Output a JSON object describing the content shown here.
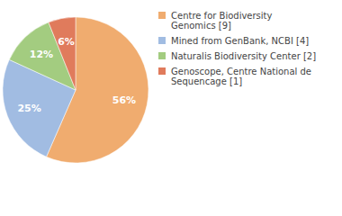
{
  "chart_data": {
    "type": "pie",
    "categories": [
      "Centre for Biodiversity\nGenomics [9]",
      "Mined from GenBank, NCBI [4]",
      "Naturalis Biodiversity Center [2]",
      "Genoscope, Centre National de\nSequencage [1]"
    ],
    "values": [
      56,
      25,
      12,
      6
    ],
    "value_labels": [
      "56%",
      "25%",
      "12%",
      "6%"
    ],
    "colors": [
      "#f0ac6f",
      "#a1bce2",
      "#a3cc80",
      "#e07b5c"
    ],
    "data_labels": true,
    "legend": "right"
  }
}
